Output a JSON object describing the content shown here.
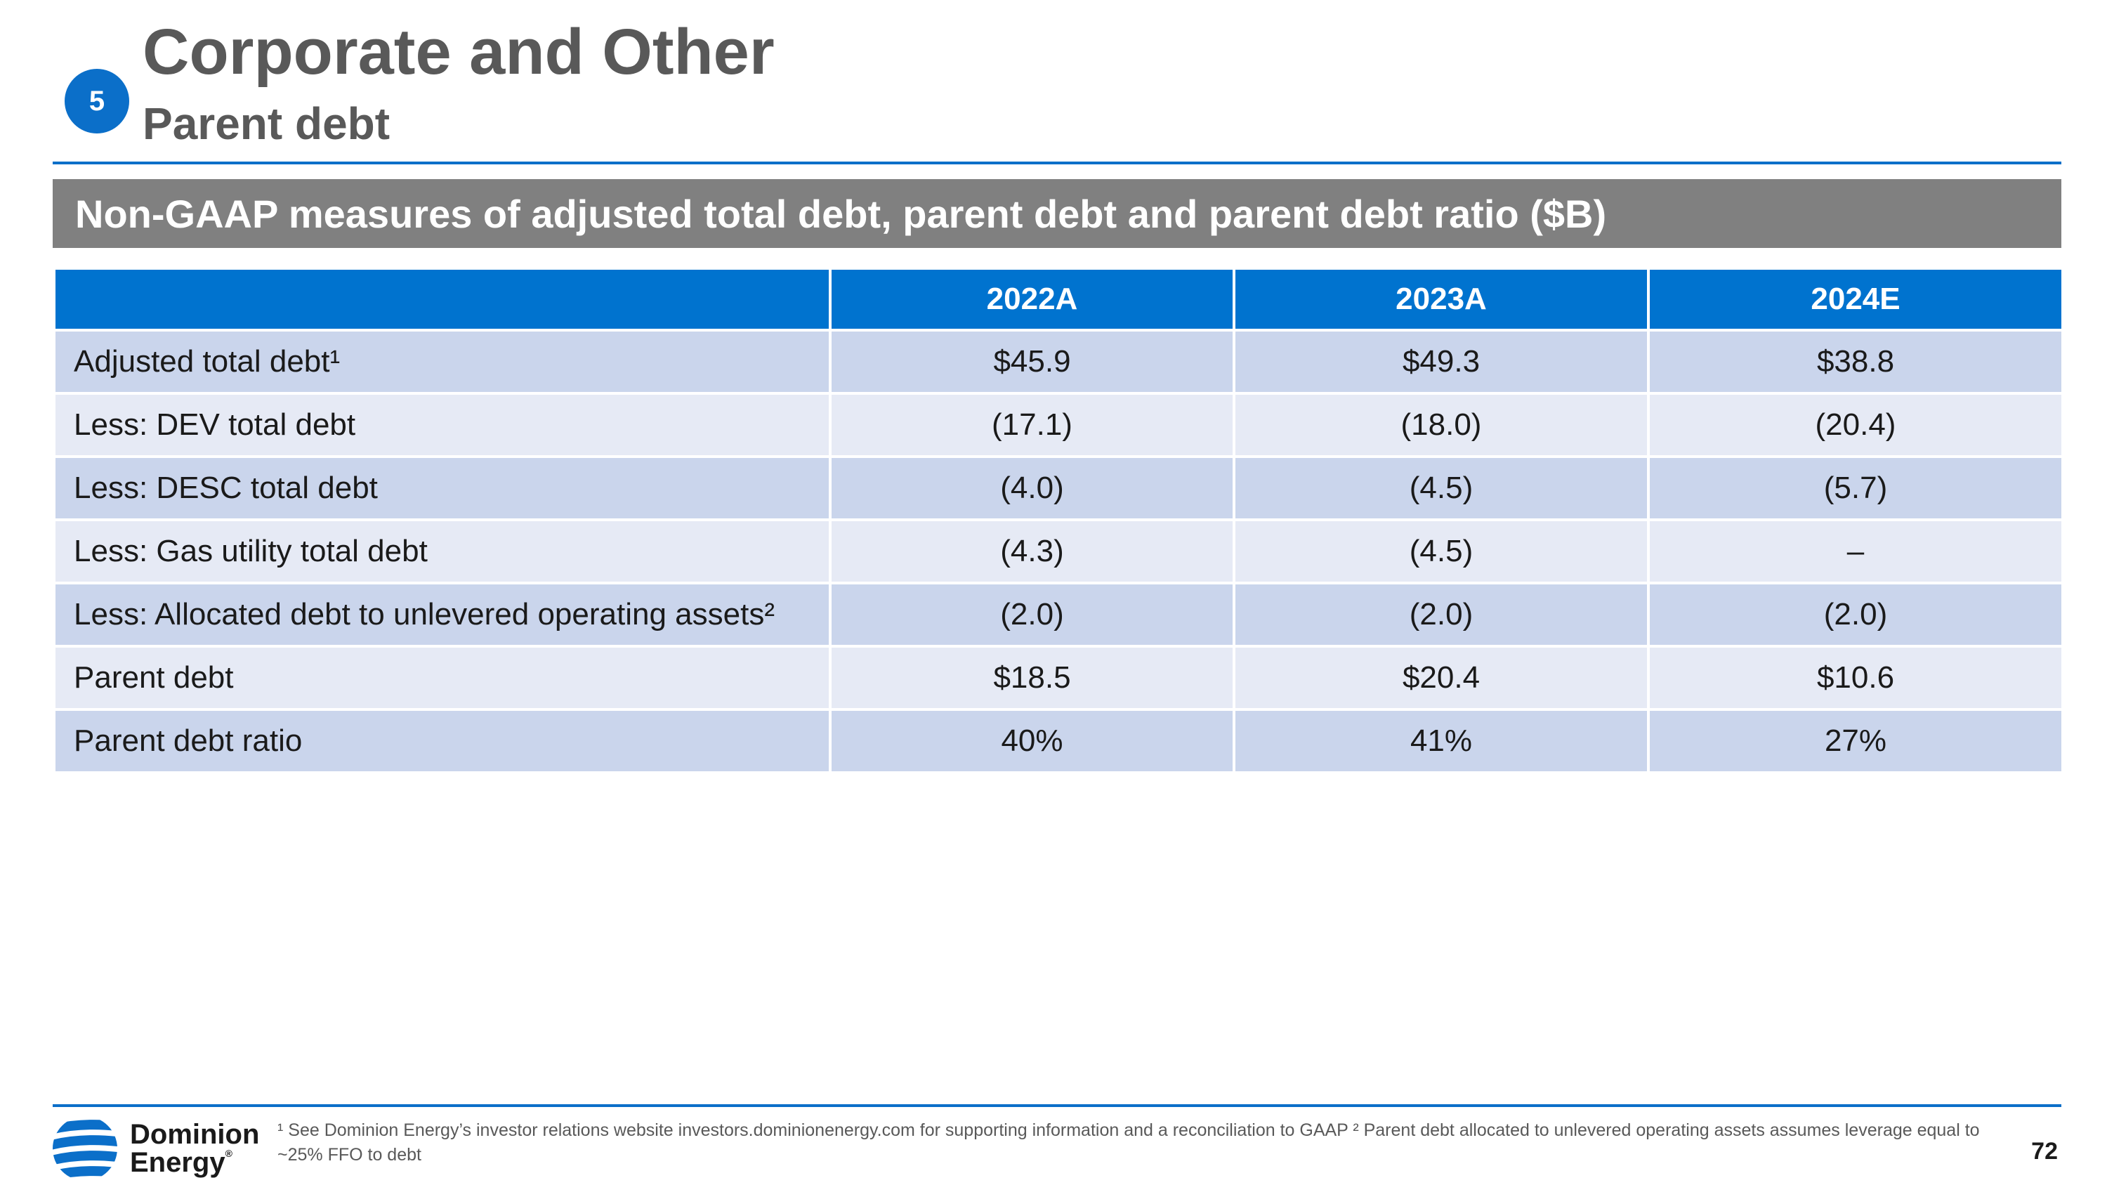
{
  "header": {
    "section_number": "5",
    "title": "Corporate and Other",
    "subtitle": "Parent debt"
  },
  "banner": {
    "text": "Non-GAAP measures of adjusted total debt, parent debt and parent debt ratio ($B)"
  },
  "table": {
    "columns": [
      "",
      "2022A",
      "2023A",
      "2024E"
    ],
    "rows": [
      {
        "label": "Adjusted total debt¹",
        "values": [
          "$45.9",
          "$49.3",
          "$38.8"
        ]
      },
      {
        "label": "Less: DEV total debt",
        "values": [
          "(17.1)",
          "(18.0)",
          "(20.4)"
        ]
      },
      {
        "label": "Less: DESC total debt",
        "values": [
          "(4.0)",
          "(4.5)",
          "(5.7)"
        ]
      },
      {
        "label": "Less: Gas utility total debt",
        "values": [
          "(4.3)",
          "(4.5)",
          "–"
        ]
      },
      {
        "label": "Less: Allocated debt to unlevered operating assets²",
        "values": [
          "(2.0)",
          "(2.0)",
          "(2.0)"
        ]
      },
      {
        "label": "Parent debt",
        "values": [
          "$18.5",
          "$20.4",
          "$10.6"
        ]
      },
      {
        "label": "Parent debt ratio",
        "values": [
          "40%",
          "41%",
          "27%"
        ]
      }
    ]
  },
  "footer": {
    "logo_line1": "Dominion",
    "logo_line2": "Energy",
    "logo_mark": "®",
    "footnote": "¹ See Dominion Energy’s investor relations website investors.dominionenergy.com for supporting information and a reconciliation to GAAP  ² Parent debt allocated to unlevered operating assets assumes leverage equal to ~25% FFO to debt",
    "page_number": "72"
  },
  "colors": {
    "accent_blue": "#0073cf",
    "banner_gray": "#808080",
    "row_dark": "#cad5ec",
    "row_light": "#e6eaf5",
    "title_gray": "#595959"
  },
  "icons": {
    "logo": "dominion-energy-logo-icon"
  }
}
